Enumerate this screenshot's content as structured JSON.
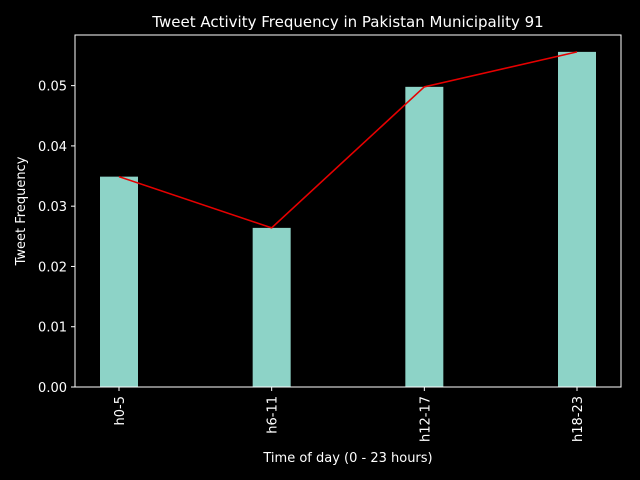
{
  "chart_data": {
    "type": "bar",
    "title": "Tweet Activity Frequency in Pakistan Municipality 91",
    "xlabel": "Time of day (0 - 23 hours)",
    "ylabel": "Tweet Frequency",
    "categories": [
      "h0-5",
      "h6-11",
      "h12-17",
      "h18-23"
    ],
    "values": [
      0.0349,
      0.0264,
      0.0498,
      0.0556
    ],
    "ylim": [
      0,
      0.0584
    ],
    "yticks": [
      0.0,
      0.01,
      0.02,
      0.03,
      0.04,
      0.05
    ],
    "ytick_labels": [
      "0.00",
      "0.01",
      "0.02",
      "0.03",
      "0.04",
      "0.05"
    ],
    "bar_color": "#8dd3c7",
    "line_color": "#e60000",
    "background_color": "#000000",
    "grid": false,
    "legend": false
  }
}
